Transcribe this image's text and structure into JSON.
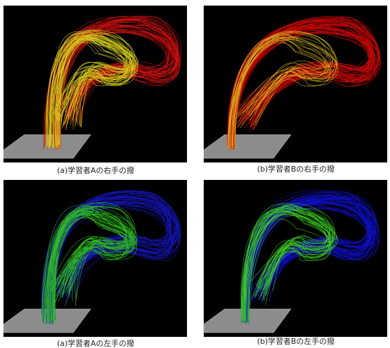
{
  "panels": [
    {
      "caption": "(a)学習者Aの右手の撥"
    },
    {
      "caption": "(b)学習者Bの右手の撥"
    },
    {
      "caption": "(a)学習者Aの左手の撥"
    },
    {
      "caption": "(b)学習者Bの左手の撥"
    }
  ]
}
